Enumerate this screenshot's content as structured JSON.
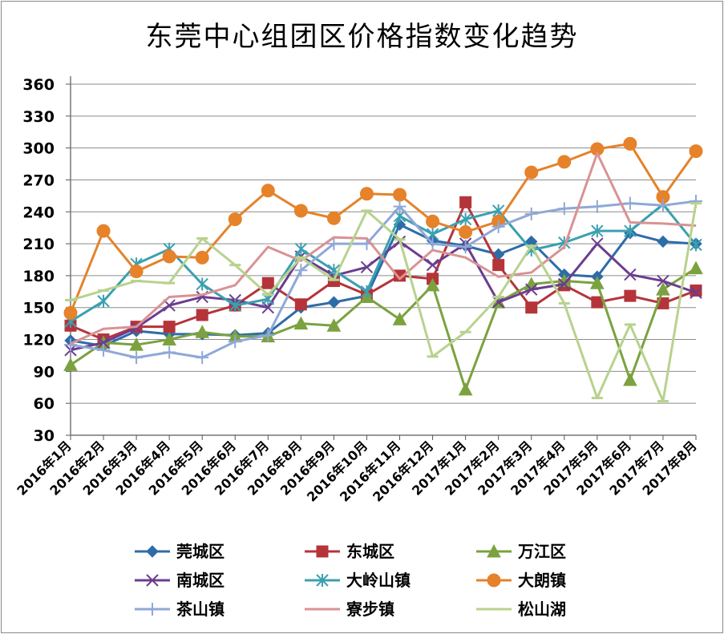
{
  "chart_data": {
    "type": "line",
    "title": "东莞中心组团区价格指数变化趋势",
    "xlabel": "",
    "ylabel": "",
    "ylim": [
      30,
      360
    ],
    "yticks": [
      30,
      60,
      90,
      120,
      150,
      180,
      210,
      240,
      270,
      300,
      330,
      360
    ],
    "grid": true,
    "legend_position": "bottom",
    "categories": [
      "2016年1月",
      "2016年2月",
      "2016年3月",
      "2016年4月",
      "2016年5月",
      "2016年6月",
      "2016年7月",
      "2016年8月",
      "2016年9月",
      "2016年10月",
      "2016年11月",
      "2016年12月",
      "2017年1月",
      "2017年2月",
      "2017年3月",
      "2017年4月",
      "2017年5月",
      "2017年6月",
      "2017年7月",
      "2017年8月"
    ],
    "series": [
      {
        "name": "莞城区",
        "color": "#2e6ca8",
        "marker": "diamond",
        "values": [
          119,
          114,
          128,
          125,
          125,
          124,
          126,
          150,
          155,
          161,
          228,
          213,
          208,
          200,
          212,
          181,
          179,
          220,
          212,
          210
        ]
      },
      {
        "name": "东城区",
        "color": "#b5343a",
        "marker": "square",
        "values": [
          133,
          120,
          132,
          132,
          143,
          152,
          173,
          153,
          175,
          162,
          180,
          177,
          249,
          190,
          150,
          171,
          155,
          161,
          154,
          166
        ]
      },
      {
        "name": "万江区",
        "color": "#7ba23f",
        "marker": "triangle",
        "values": [
          96,
          117,
          115,
          120,
          127,
          123,
          123,
          135,
          133,
          160,
          139,
          171,
          73,
          155,
          172,
          175,
          173,
          82,
          167,
          187
        ]
      },
      {
        "name": "南城区",
        "color": "#6b3d8f",
        "marker": "x",
        "values": [
          110,
          117,
          131,
          152,
          160,
          157,
          150,
          198,
          180,
          188,
          212,
          190,
          210,
          155,
          167,
          172,
          210,
          181,
          175,
          164
        ]
      },
      {
        "name": "大岭山镇",
        "color": "#3aa0b0",
        "marker": "star",
        "values": [
          137,
          156,
          191,
          205,
          172,
          152,
          158,
          205,
          185,
          165,
          236,
          219,
          233,
          241,
          204,
          211,
          222,
          222,
          247,
          209
        ]
      },
      {
        "name": "大朗镇",
        "color": "#e5822a",
        "marker": "circle",
        "values": [
          145,
          222,
          184,
          198,
          197,
          233,
          260,
          241,
          234,
          257,
          256,
          231,
          221,
          231,
          277,
          287,
          299,
          304,
          254,
          297
        ]
      },
      {
        "name": "茶山镇",
        "color": "#8fa8d6",
        "marker": "plus",
        "values": [
          115,
          110,
          103,
          108,
          103,
          118,
          124,
          185,
          210,
          210,
          245,
          210,
          207,
          226,
          238,
          243,
          245,
          248,
          246,
          250
        ]
      },
      {
        "name": "寮步镇",
        "color": "#d99294",
        "marker": "none",
        "values": [
          116,
          130,
          132,
          160,
          162,
          171,
          207,
          194,
          216,
          215,
          177,
          204,
          197,
          179,
          183,
          207,
          295,
          230,
          229,
          227
        ]
      },
      {
        "name": "松山湖",
        "color": "#b8d28e",
        "marker": "line",
        "values": [
          157,
          166,
          175,
          173,
          215,
          190,
          162,
          197,
          176,
          241,
          214,
          104,
          127,
          160,
          208,
          154,
          65,
          134,
          62,
          248
        ]
      }
    ]
  }
}
